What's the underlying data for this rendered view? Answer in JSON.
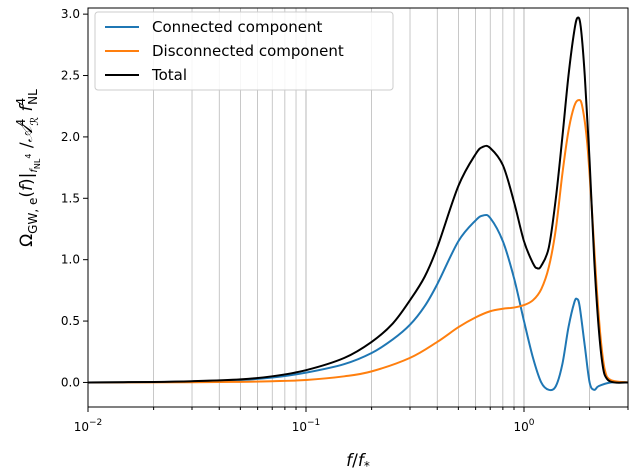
{
  "chart_data": {
    "type": "line",
    "title": "",
    "xlabel": "f/f*",
    "ylabel": "Ω_GW,e(f)|_fNL^4 / A_R^4 f_NL^4",
    "xscale": "log",
    "xlim": [
      0.01,
      3.0
    ],
    "ylim": [
      -0.2,
      3.05
    ],
    "grid": "x-only (major and minor)",
    "legend_position": "top-left",
    "x_ticks": [
      {
        "value": 0.01,
        "base": "10",
        "exp": "−2"
      },
      {
        "value": 0.1,
        "base": "10",
        "exp": "−1"
      },
      {
        "value": 1,
        "base": "10",
        "exp": "0"
      }
    ],
    "y_ticks": [
      {
        "value": 0.0,
        "label": "0.0"
      },
      {
        "value": 0.5,
        "label": "0.5"
      },
      {
        "value": 1.0,
        "label": "1.0"
      },
      {
        "value": 1.5,
        "label": "1.5"
      },
      {
        "value": 2.0,
        "label": "2.0"
      },
      {
        "value": 2.5,
        "label": "2.5"
      },
      {
        "value": 3.0,
        "label": "3.0"
      }
    ],
    "series": [
      {
        "name": "Connected component",
        "color": "#1f77b4",
        "points": [
          [
            0.01,
            0.0
          ],
          [
            0.02,
            0.003
          ],
          [
            0.03,
            0.008
          ],
          [
            0.05,
            0.02
          ],
          [
            0.07,
            0.04
          ],
          [
            0.1,
            0.08
          ],
          [
            0.15,
            0.15
          ],
          [
            0.2,
            0.24
          ],
          [
            0.25,
            0.35
          ],
          [
            0.3,
            0.47
          ],
          [
            0.35,
            0.62
          ],
          [
            0.4,
            0.8
          ],
          [
            0.5,
            1.15
          ],
          [
            0.6,
            1.32
          ],
          [
            0.65,
            1.36
          ],
          [
            0.7,
            1.34
          ],
          [
            0.8,
            1.15
          ],
          [
            0.9,
            0.85
          ],
          [
            1.0,
            0.5
          ],
          [
            1.1,
            0.2
          ],
          [
            1.2,
            0.0
          ],
          [
            1.3,
            -0.06
          ],
          [
            1.4,
            -0.03
          ],
          [
            1.5,
            0.15
          ],
          [
            1.6,
            0.45
          ],
          [
            1.7,
            0.65
          ],
          [
            1.75,
            0.68
          ],
          [
            1.8,
            0.62
          ],
          [
            1.9,
            0.3
          ],
          [
            2.0,
            0.0
          ],
          [
            2.1,
            -0.06
          ],
          [
            2.2,
            -0.03
          ],
          [
            2.5,
            0.0
          ],
          [
            3.0,
            0.0
          ]
        ]
      },
      {
        "name": "Disconnected component",
        "color": "#ff7f0e",
        "points": [
          [
            0.01,
            0.0
          ],
          [
            0.03,
            0.002
          ],
          [
            0.05,
            0.005
          ],
          [
            0.07,
            0.01
          ],
          [
            0.1,
            0.02
          ],
          [
            0.15,
            0.05
          ],
          [
            0.2,
            0.09
          ],
          [
            0.3,
            0.2
          ],
          [
            0.4,
            0.33
          ],
          [
            0.5,
            0.45
          ],
          [
            0.6,
            0.53
          ],
          [
            0.7,
            0.58
          ],
          [
            0.8,
            0.6
          ],
          [
            0.9,
            0.61
          ],
          [
            1.0,
            0.63
          ],
          [
            1.1,
            0.67
          ],
          [
            1.2,
            0.76
          ],
          [
            1.3,
            0.94
          ],
          [
            1.4,
            1.25
          ],
          [
            1.5,
            1.7
          ],
          [
            1.6,
            2.05
          ],
          [
            1.7,
            2.25
          ],
          [
            1.78,
            2.3
          ],
          [
            1.85,
            2.25
          ],
          [
            1.95,
            1.95
          ],
          [
            2.05,
            1.4
          ],
          [
            2.15,
            0.8
          ],
          [
            2.25,
            0.35
          ],
          [
            2.35,
            0.1
          ],
          [
            2.5,
            0.02
          ],
          [
            3.0,
            0.0
          ]
        ]
      },
      {
        "name": "Total",
        "color": "#000000",
        "points": [
          [
            0.01,
            0.0
          ],
          [
            0.02,
            0.004
          ],
          [
            0.03,
            0.01
          ],
          [
            0.05,
            0.025
          ],
          [
            0.07,
            0.05
          ],
          [
            0.1,
            0.1
          ],
          [
            0.15,
            0.2
          ],
          [
            0.2,
            0.33
          ],
          [
            0.25,
            0.48
          ],
          [
            0.3,
            0.67
          ],
          [
            0.35,
            0.86
          ],
          [
            0.4,
            1.1
          ],
          [
            0.5,
            1.6
          ],
          [
            0.6,
            1.86
          ],
          [
            0.65,
            1.92
          ],
          [
            0.7,
            1.91
          ],
          [
            0.8,
            1.77
          ],
          [
            0.9,
            1.47
          ],
          [
            1.0,
            1.15
          ],
          [
            1.1,
            0.97
          ],
          [
            1.15,
            0.93
          ],
          [
            1.2,
            0.95
          ],
          [
            1.3,
            1.1
          ],
          [
            1.4,
            1.5
          ],
          [
            1.5,
            2.0
          ],
          [
            1.6,
            2.5
          ],
          [
            1.7,
            2.86
          ],
          [
            1.76,
            2.97
          ],
          [
            1.82,
            2.9
          ],
          [
            1.9,
            2.5
          ],
          [
            2.0,
            1.8
          ],
          [
            2.1,
            1.0
          ],
          [
            2.2,
            0.45
          ],
          [
            2.3,
            0.13
          ],
          [
            2.4,
            0.03
          ],
          [
            2.6,
            0.0
          ],
          [
            3.0,
            0.0
          ]
        ]
      }
    ]
  }
}
